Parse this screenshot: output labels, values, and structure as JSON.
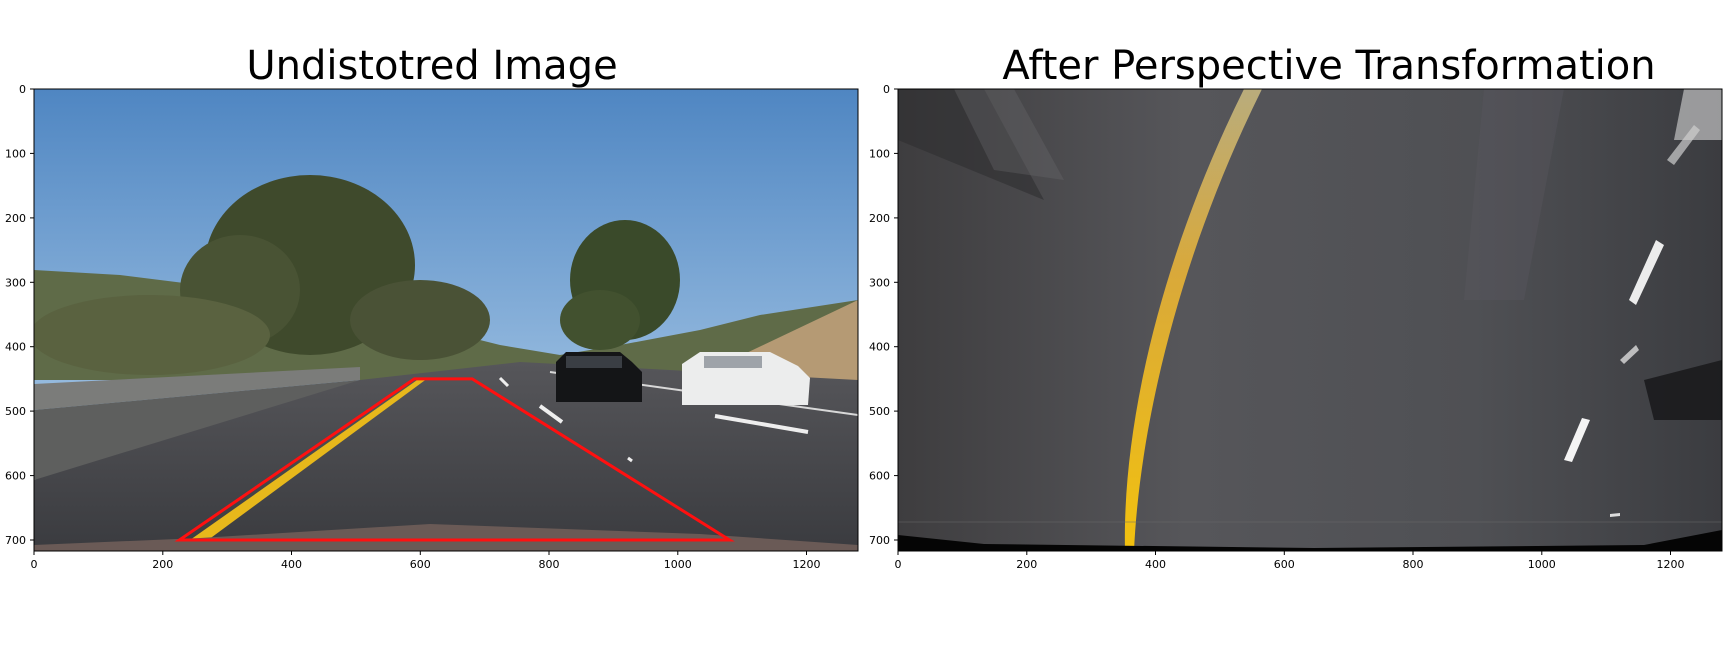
{
  "figure": {
    "panels": [
      {
        "title": "Undistotred Image",
        "image_subject": "dashcam road scene: highway with yellow left lane line, white dashed lane markings, black sedan and white sedan ahead, trees and hills under blue sky",
        "overlay": {
          "shape": "trapezoid",
          "color": "#ff1010",
          "points_data": [
            [
              230,
              700
            ],
            [
              595,
              450
            ],
            [
              685,
              450
            ],
            [
              1080,
              700
            ]
          ]
        }
      },
      {
        "title": "After Perspective Transformation",
        "image_subject": "bird's-eye view of road: grey asphalt with curved yellow lane line on the left and white dashed lane markings on the right"
      }
    ],
    "axes": {
      "x_ticks": [
        "0",
        "200",
        "400",
        "600",
        "800",
        "1000",
        "1200"
      ],
      "y_ticks": [
        "0",
        "100",
        "200",
        "300",
        "400",
        "500",
        "600",
        "700"
      ],
      "xlim": [
        0,
        1280
      ],
      "ylim": [
        720,
        0
      ]
    },
    "colors": {
      "overlay_red": "#ff1010",
      "lane_yellow": "#f2c10f",
      "sky_blue": "#7aa8d8",
      "asphalt": "#4a4b50"
    }
  }
}
